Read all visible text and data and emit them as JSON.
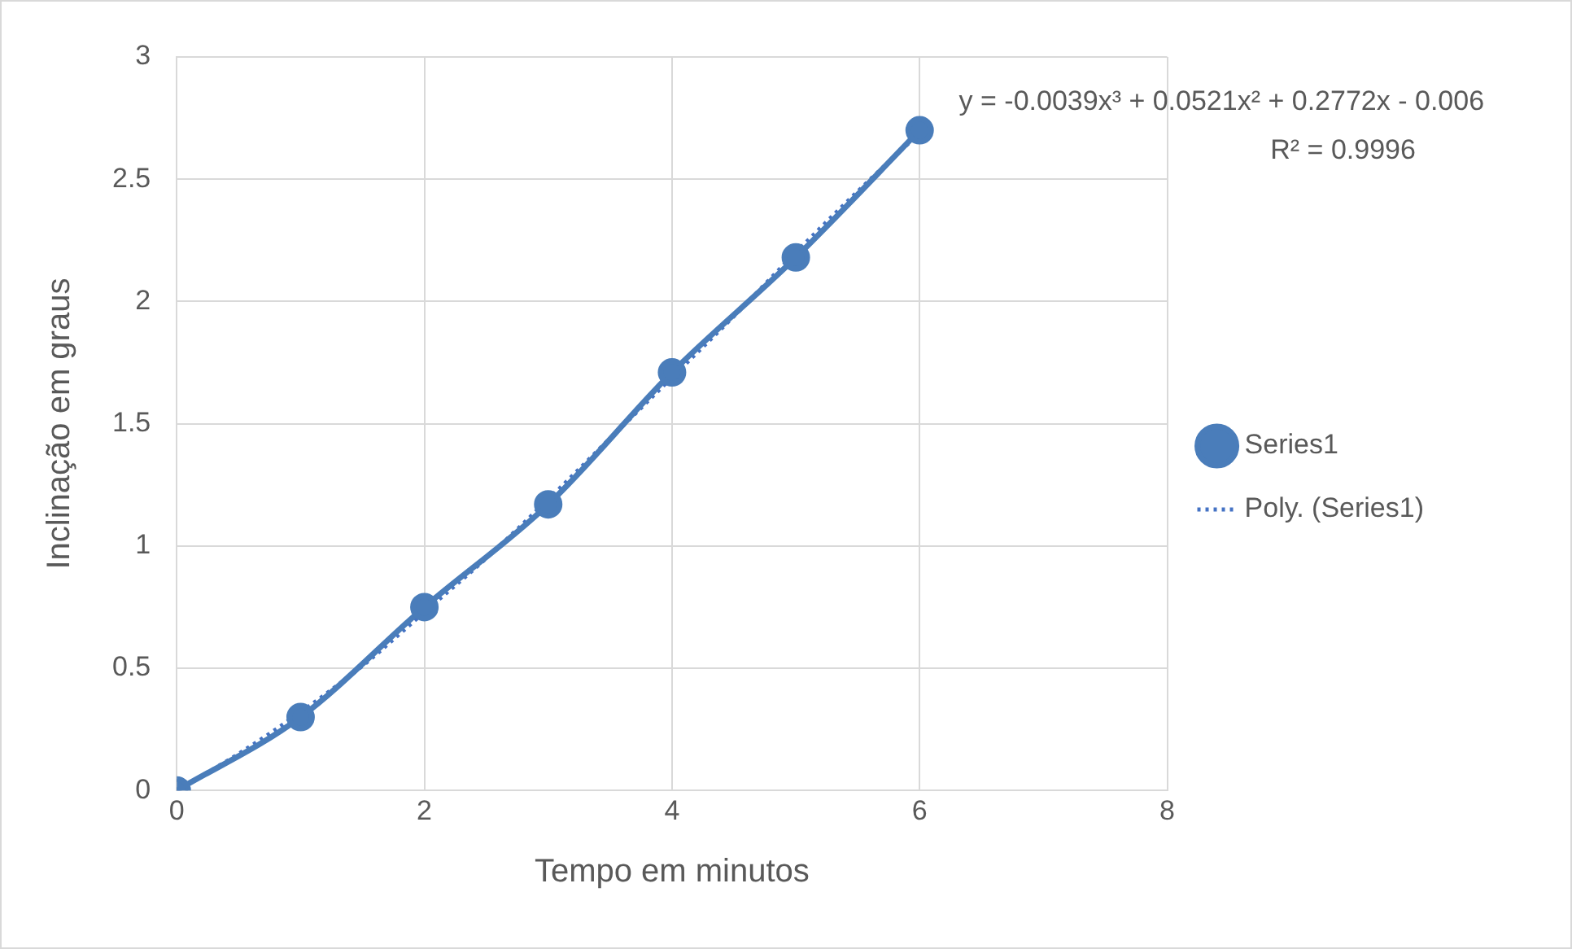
{
  "chart_data": {
    "type": "line",
    "xlabel": "Tempo em minutos",
    "ylabel": "Inclinação em graus",
    "x": [
      0,
      1,
      2,
      3,
      4,
      5,
      6
    ],
    "series": [
      {
        "name": "Series1",
        "color": "#4a7dba",
        "values": [
          0,
          0.3,
          0.75,
          1.17,
          1.71,
          2.18,
          2.7
        ],
        "marker": "circle",
        "line_style": "solid"
      },
      {
        "name": "Poly. (Series1)",
        "color": "#4472c4",
        "type": "line",
        "x": [
          0,
          0.5,
          1,
          1.5,
          2,
          2.5,
          3,
          3.5,
          4,
          4.5,
          5,
          5.5,
          6
        ],
        "values": [
          0,
          0.15,
          0.32,
          0.51,
          0.73,
          0.95,
          1.19,
          1.44,
          1.69,
          1.94,
          2.2,
          2.45,
          2.69
        ],
        "marker": "none",
        "line_style": "dotted"
      }
    ],
    "xlim": [
      0,
      8
    ],
    "xticks": [
      0,
      2,
      4,
      6,
      8
    ],
    "ylim": [
      0,
      3
    ],
    "yticks": [
      0,
      0.5,
      1,
      1.5,
      2,
      2.5,
      3
    ],
    "grid": true,
    "legend": "right",
    "annotations": [
      "y = -0.0039x³ + 0.0521x² + 0.2772x - 0.006",
      "R² = 0.9996"
    ]
  }
}
